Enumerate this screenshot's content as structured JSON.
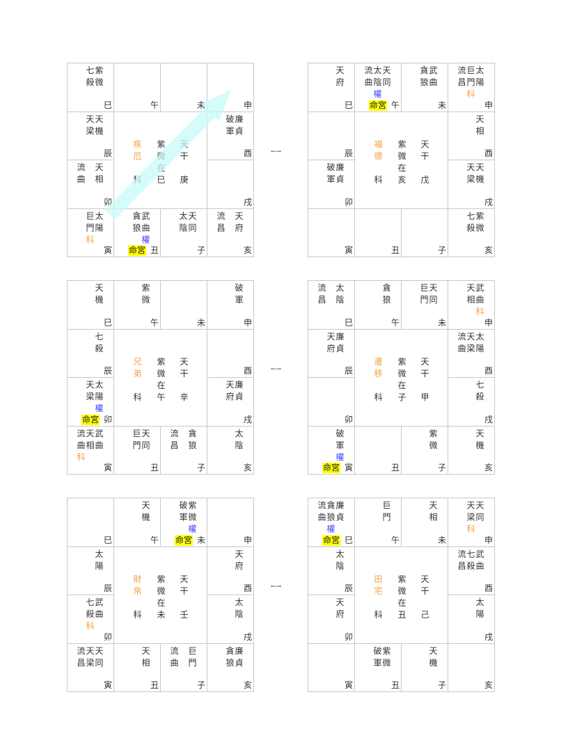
{
  "colors": {
    "ke": "#f5a040",
    "quan": "#4444ff",
    "ming_highlight": "#ffff00",
    "arrow": "#c8fafa"
  },
  "swap_label": "←→",
  "ming_label": "命宮",
  "ke_label": "科",
  "ziwei_label": "紫微在",
  "stem_label": "天干",
  "charts": [
    {
      "center": {
        "palace": "疾厄",
        "ziwei_branch": "巳",
        "stem": "庚"
      },
      "ming": "丑",
      "has_arrow": true,
      "cells": {
        "巳": [
          {
            "t": "紫微"
          },
          {
            "t": "七殺"
          }
        ],
        "午": [],
        "未": [],
        "申": [],
        "辰": [
          {
            "t": "天機"
          },
          {
            "t": "天梁"
          }
        ],
        "酉": [
          {
            "t": "廉貞"
          },
          {
            "t": "破軍"
          }
        ],
        "卯": [
          {
            "t": "天相"
          },
          {
            "t": ""
          },
          {
            "t": "流曲"
          }
        ],
        "戌": [],
        "寅": [
          {
            "t": "太陽"
          },
          {
            "t": "巨門",
            "m": "科"
          }
        ],
        "丑": [
          {
            "t": "武曲",
            "m": "權"
          },
          {
            "t": "貪狼"
          }
        ],
        "子": [
          {
            "t": "天同"
          },
          {
            "t": "太陰"
          }
        ],
        "亥": [
          {
            "t": "天府"
          },
          {
            "t": ""
          },
          {
            "t": "流昌"
          }
        ]
      }
    },
    {
      "center": {
        "palace": "福德",
        "ziwei_branch": "亥",
        "stem": "戊"
      },
      "ming": "午",
      "cells": {
        "巳": [
          {
            "t": "天府"
          }
        ],
        "午": [
          {
            "t": "天同"
          },
          {
            "t": "太陰",
            "m": "權"
          },
          {
            "t": "流曲"
          }
        ],
        "未": [
          {
            "t": "武曲"
          },
          {
            "t": "貪狼"
          }
        ],
        "申": [
          {
            "t": "太陽"
          },
          {
            "t": "巨門",
            "m": "科"
          },
          {
            "t": "流昌"
          }
        ],
        "辰": [],
        "酉": [
          {
            "t": "天相"
          }
        ],
        "卯": [
          {
            "t": "廉貞"
          },
          {
            "t": "破軍"
          }
        ],
        "戌": [
          {
            "t": "天機"
          },
          {
            "t": "天梁"
          }
        ],
        "寅": [],
        "丑": [],
        "子": [],
        "亥": [
          {
            "t": "紫微"
          },
          {
            "t": "七殺"
          }
        ]
      }
    },
    {
      "center": {
        "palace": "兄弟",
        "ziwei_branch": "午",
        "stem": "辛"
      },
      "ming": "卯",
      "cells": {
        "巳": [
          {
            "t": "天機"
          }
        ],
        "午": [
          {
            "t": "紫微"
          }
        ],
        "未": [],
        "申": [
          {
            "t": "破軍"
          }
        ],
        "辰": [
          {
            "t": "七殺"
          }
        ],
        "酉": [],
        "卯": [
          {
            "t": "太陽",
            "m": "權"
          },
          {
            "t": "天梁"
          }
        ],
        "戌": [
          {
            "t": "廉貞"
          },
          {
            "t": "天府"
          }
        ],
        "寅": [
          {
            "t": "武曲"
          },
          {
            "t": "天相"
          },
          {
            "t": "流曲",
            "m": "科"
          }
        ],
        "丑": [
          {
            "t": "天同"
          },
          {
            "t": "巨門"
          }
        ],
        "子": [
          {
            "t": "貪狼"
          },
          {
            "t": ""
          },
          {
            "t": "流昌"
          }
        ],
        "亥": [
          {
            "t": "太陰"
          }
        ]
      }
    },
    {
      "center": {
        "palace": "遷移",
        "ziwei_branch": "子",
        "stem": "甲"
      },
      "ming": "寅",
      "cells": {
        "巳": [
          {
            "t": "太陰"
          },
          {
            "t": ""
          },
          {
            "t": "流昌"
          }
        ],
        "午": [
          {
            "t": "貪狼"
          }
        ],
        "未": [
          {
            "t": "天同"
          },
          {
            "t": "巨門"
          }
        ],
        "申": [
          {
            "t": "武曲",
            "m": "科"
          },
          {
            "t": "天相"
          }
        ],
        "辰": [
          {
            "t": "廉貞"
          },
          {
            "t": "天府"
          }
        ],
        "酉": [
          {
            "t": "太陽"
          },
          {
            "t": "天梁"
          },
          {
            "t": "流曲"
          }
        ],
        "卯": [],
        "戌": [
          {
            "t": "七殺"
          }
        ],
        "寅": [
          {
            "t": "破軍",
            "m": "權"
          }
        ],
        "丑": [],
        "子": [
          {
            "t": "紫微"
          }
        ],
        "亥": [
          {
            "t": "天機"
          }
        ]
      }
    },
    {
      "center": {
        "palace": "財帛",
        "ziwei_branch": "未",
        "stem": "壬"
      },
      "ming": "未",
      "cells": {
        "巳": [],
        "午": [
          {
            "t": "天機"
          }
        ],
        "未": [
          {
            "t": "紫微",
            "m": "權"
          },
          {
            "t": "破軍"
          }
        ],
        "申": [],
        "辰": [
          {
            "t": "太陽"
          }
        ],
        "酉": [
          {
            "t": "天府"
          }
        ],
        "卯": [
          {
            "t": "武曲"
          },
          {
            "t": "七殺",
            "m": "科"
          }
        ],
        "戌": [
          {
            "t": "太陰"
          }
        ],
        "寅": [
          {
            "t": "天同"
          },
          {
            "t": "天梁"
          },
          {
            "t": "流昌"
          }
        ],
        "丑": [
          {
            "t": "天相"
          }
        ],
        "子": [
          {
            "t": "巨門"
          },
          {
            "t": ""
          },
          {
            "t": "流曲"
          }
        ],
        "亥": [
          {
            "t": "廉貞"
          },
          {
            "t": "貪狼"
          }
        ]
      }
    },
    {
      "center": {
        "palace": "田宅",
        "ziwei_branch": "丑",
        "stem": "己"
      },
      "ming": "巳",
      "cells": {
        "巳": [
          {
            "t": "廉貞"
          },
          {
            "t": "貪狼",
            "m": "權"
          },
          {
            "t": "流曲"
          }
        ],
        "午": [
          {
            "t": "巨門"
          }
        ],
        "未": [
          {
            "t": "天相"
          }
        ],
        "申": [
          {
            "t": "天同"
          },
          {
            "t": "天梁",
            "m": "科"
          }
        ],
        "辰": [
          {
            "t": "太陰"
          }
        ],
        "酉": [
          {
            "t": "武曲"
          },
          {
            "t": "七殺"
          },
          {
            "t": "流昌"
          }
        ],
        "卯": [
          {
            "t": "天府"
          }
        ],
        "戌": [
          {
            "t": "太陽"
          }
        ],
        "寅": [],
        "丑": [
          {
            "t": "紫微"
          },
          {
            "t": "破軍"
          }
        ],
        "子": [
          {
            "t": "天機"
          }
        ],
        "亥": []
      }
    }
  ]
}
